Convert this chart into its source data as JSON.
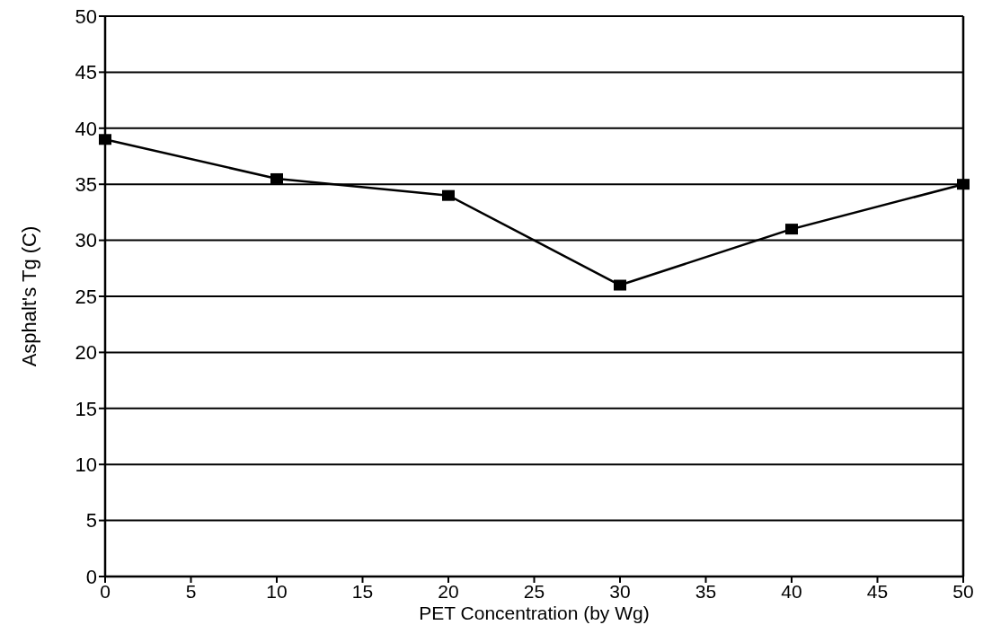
{
  "chart_data": {
    "type": "line",
    "xlabel": "PET Concentration (by Wg)",
    "ylabel": "Asphalt's Tg (C)",
    "x": [
      0,
      10,
      20,
      30,
      40,
      50
    ],
    "series": [
      {
        "color": "#000000",
        "values": [
          39,
          35.5,
          34,
          26,
          31,
          35
        ]
      }
    ],
    "xlim": [
      0,
      50
    ],
    "xticks": [
      0,
      5,
      10,
      15,
      20,
      25,
      30,
      35,
      40,
      45,
      50
    ],
    "ylim": [
      0,
      50
    ],
    "yticks": [
      0,
      5,
      10,
      15,
      20,
      25,
      30,
      35,
      40,
      45,
      50
    ],
    "grid": "y",
    "marker": "square",
    "line_style": "solid"
  }
}
